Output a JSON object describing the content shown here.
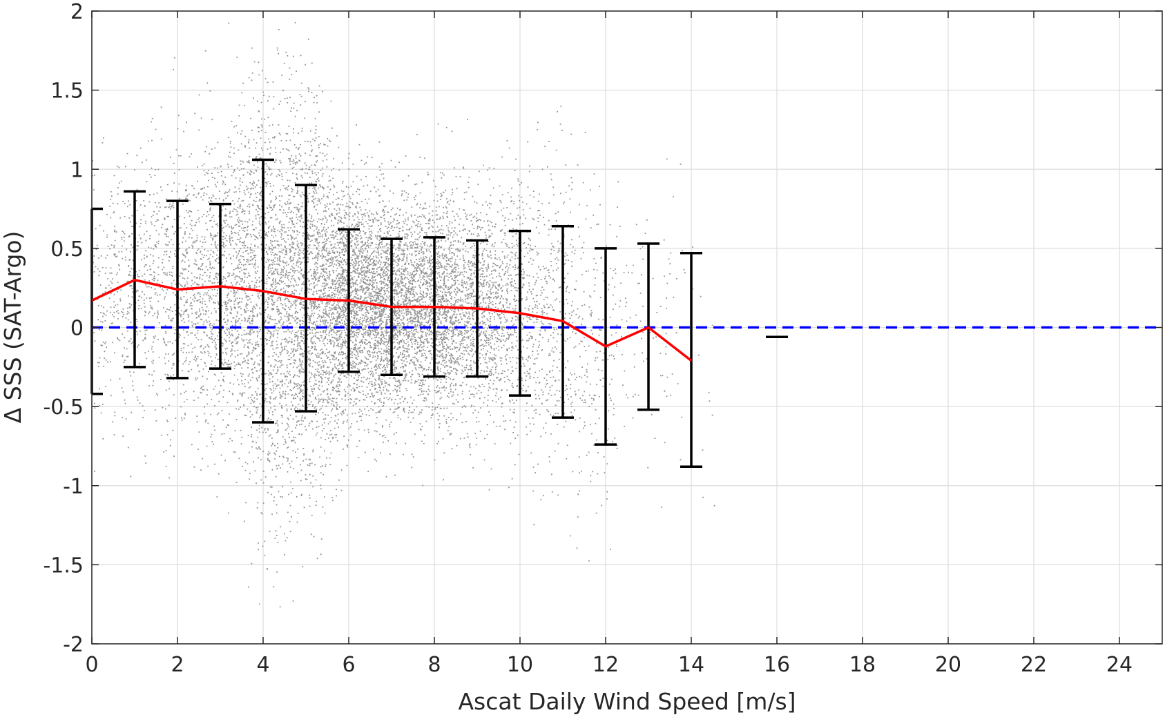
{
  "chart_data": {
    "type": "scatter",
    "xlabel": "Ascat Daily Wind Speed [m/s]",
    "ylabel": "Δ SSS (SAT-Argo)",
    "xlim": [
      0,
      25
    ],
    "ylim": [
      -2,
      2
    ],
    "xticks": [
      0,
      2,
      4,
      6,
      8,
      10,
      12,
      14,
      16,
      18,
      20,
      22,
      24
    ],
    "yticks": [
      -2,
      -1.5,
      -1,
      -0.5,
      0,
      0.5,
      1,
      1.5,
      2
    ],
    "grid": true,
    "colors": {
      "scatter": "#808080",
      "mean_line": "#ff0000",
      "zero_line": "#0000ff",
      "error_bars": "#000000",
      "grid": "#dddddd",
      "axes": "#262626"
    },
    "scatter_cloud": {
      "description_of_distribution": "dense cloud of gray points, about 12000 shown",
      "center_x_range": [
        0,
        14.5
      ],
      "center_y": 0.15
    },
    "mean_series": {
      "x": [
        0,
        1,
        2,
        3,
        4,
        5,
        6,
        7,
        8,
        9,
        10,
        11,
        12,
        13,
        14
      ],
      "y": [
        0.17,
        0.3,
        0.24,
        0.26,
        0.23,
        0.18,
        0.17,
        0.13,
        0.13,
        0.12,
        0.09,
        0.04,
        -0.12,
        0.0,
        -0.21
      ]
    },
    "error_bars": [
      {
        "x": 0,
        "low": -0.42,
        "high": 0.75
      },
      {
        "x": 1,
        "low": -0.25,
        "high": 0.86
      },
      {
        "x": 2,
        "low": -0.32,
        "high": 0.8
      },
      {
        "x": 3,
        "low": -0.26,
        "high": 0.78
      },
      {
        "x": 4,
        "low": -0.6,
        "high": 1.06
      },
      {
        "x": 5,
        "low": -0.53,
        "high": 0.9
      },
      {
        "x": 6,
        "low": -0.28,
        "high": 0.62
      },
      {
        "x": 7,
        "low": -0.3,
        "high": 0.56
      },
      {
        "x": 8,
        "low": -0.31,
        "high": 0.57
      },
      {
        "x": 9,
        "low": -0.31,
        "high": 0.55
      },
      {
        "x": 10,
        "low": -0.43,
        "high": 0.61
      },
      {
        "x": 11,
        "low": -0.57,
        "high": 0.64
      },
      {
        "x": 12,
        "low": -0.74,
        "high": 0.5
      },
      {
        "x": 13,
        "low": -0.52,
        "high": 0.53
      },
      {
        "x": 14,
        "low": -0.88,
        "high": 0.47
      },
      {
        "x": 16,
        "low": -0.06,
        "high": -0.06
      }
    ],
    "zero_line": {
      "y": 0,
      "style": "dashed"
    }
  }
}
